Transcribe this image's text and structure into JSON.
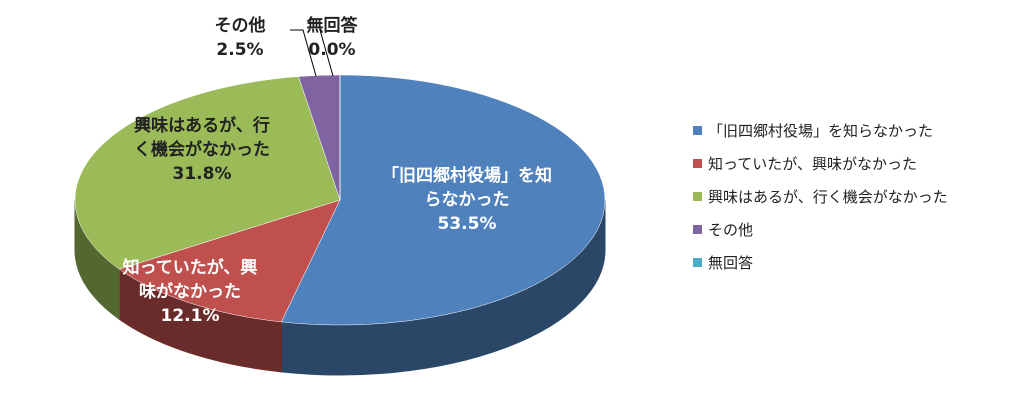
{
  "chart_data": {
    "type": "pie3d",
    "categories": [
      "「旧四郷村役場」を知らなかった",
      "知っていたが、興味がなかった",
      "興味はあるが、行く機会がなかった",
      "その他",
      "無回答"
    ],
    "values": [
      53.5,
      12.1,
      31.8,
      2.5,
      0.0
    ],
    "value_labels": [
      "53.5%",
      "12.1%",
      "31.8%",
      "2.5%",
      "0.0%"
    ],
    "colors": [
      "#4f81bd",
      "#c0504d",
      "#9bbb59",
      "#8064a2",
      "#4bacc6"
    ],
    "legend": "right"
  }
}
